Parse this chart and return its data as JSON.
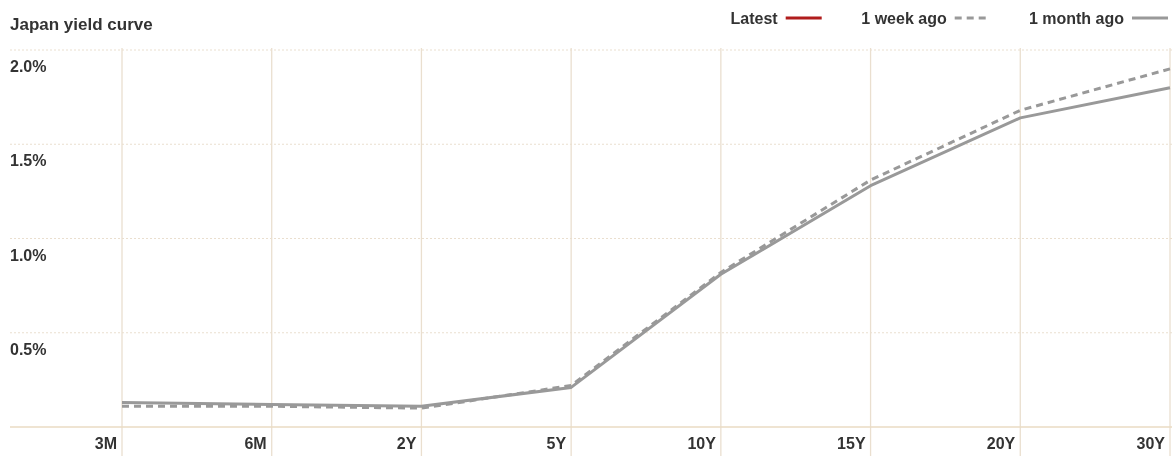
{
  "chart_data": {
    "type": "line",
    "title": "Japan yield curve",
    "categories": [
      "3M",
      "6M",
      "2Y",
      "5Y",
      "10Y",
      "15Y",
      "20Y",
      "30Y"
    ],
    "series": [
      {
        "name": "Latest",
        "color": "#b01c1c",
        "values": [
          null,
          null,
          null,
          null,
          null,
          null,
          null,
          null
        ],
        "line_style": "solid"
      },
      {
        "name": "1 week ago",
        "color": "#999999",
        "values": [
          0.11,
          0.11,
          0.1,
          0.22,
          0.82,
          1.31,
          1.68,
          1.9
        ],
        "line_style": "dashed"
      },
      {
        "name": "1 month ago",
        "color": "#999999",
        "values": [
          0.13,
          0.12,
          0.11,
          0.21,
          0.81,
          1.28,
          1.64,
          1.8
        ],
        "line_style": "solid"
      }
    ],
    "ylim": [
      0,
      2
    ],
    "yticks": [
      {
        "value": 0.5,
        "label": "0.5%"
      },
      {
        "value": 1,
        "label": "1.0%"
      },
      {
        "value": 1.5,
        "label": "1.5%"
      },
      {
        "value": 2,
        "label": "2.0%"
      }
    ],
    "grid": true,
    "legend": "top right",
    "marker": "none"
  }
}
